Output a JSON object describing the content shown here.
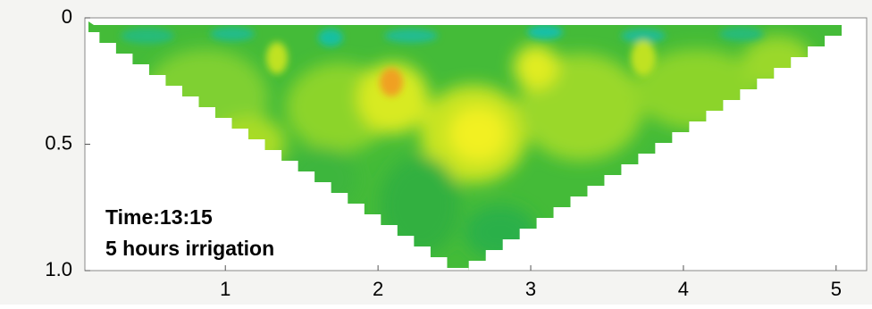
{
  "chart_data": {
    "type": "contour",
    "annotations": [
      "Time:13:15",
      "5 hours irrigation"
    ],
    "xlim": [
      0.08,
      5.2
    ],
    "xticks": [
      1,
      2,
      3,
      4,
      5
    ],
    "ylim": [
      0,
      1.0
    ],
    "yticks": [
      0,
      0.5,
      {
        "value": 1,
        "label": "1.0"
      }
    ],
    "y_inverted": true
  }
}
